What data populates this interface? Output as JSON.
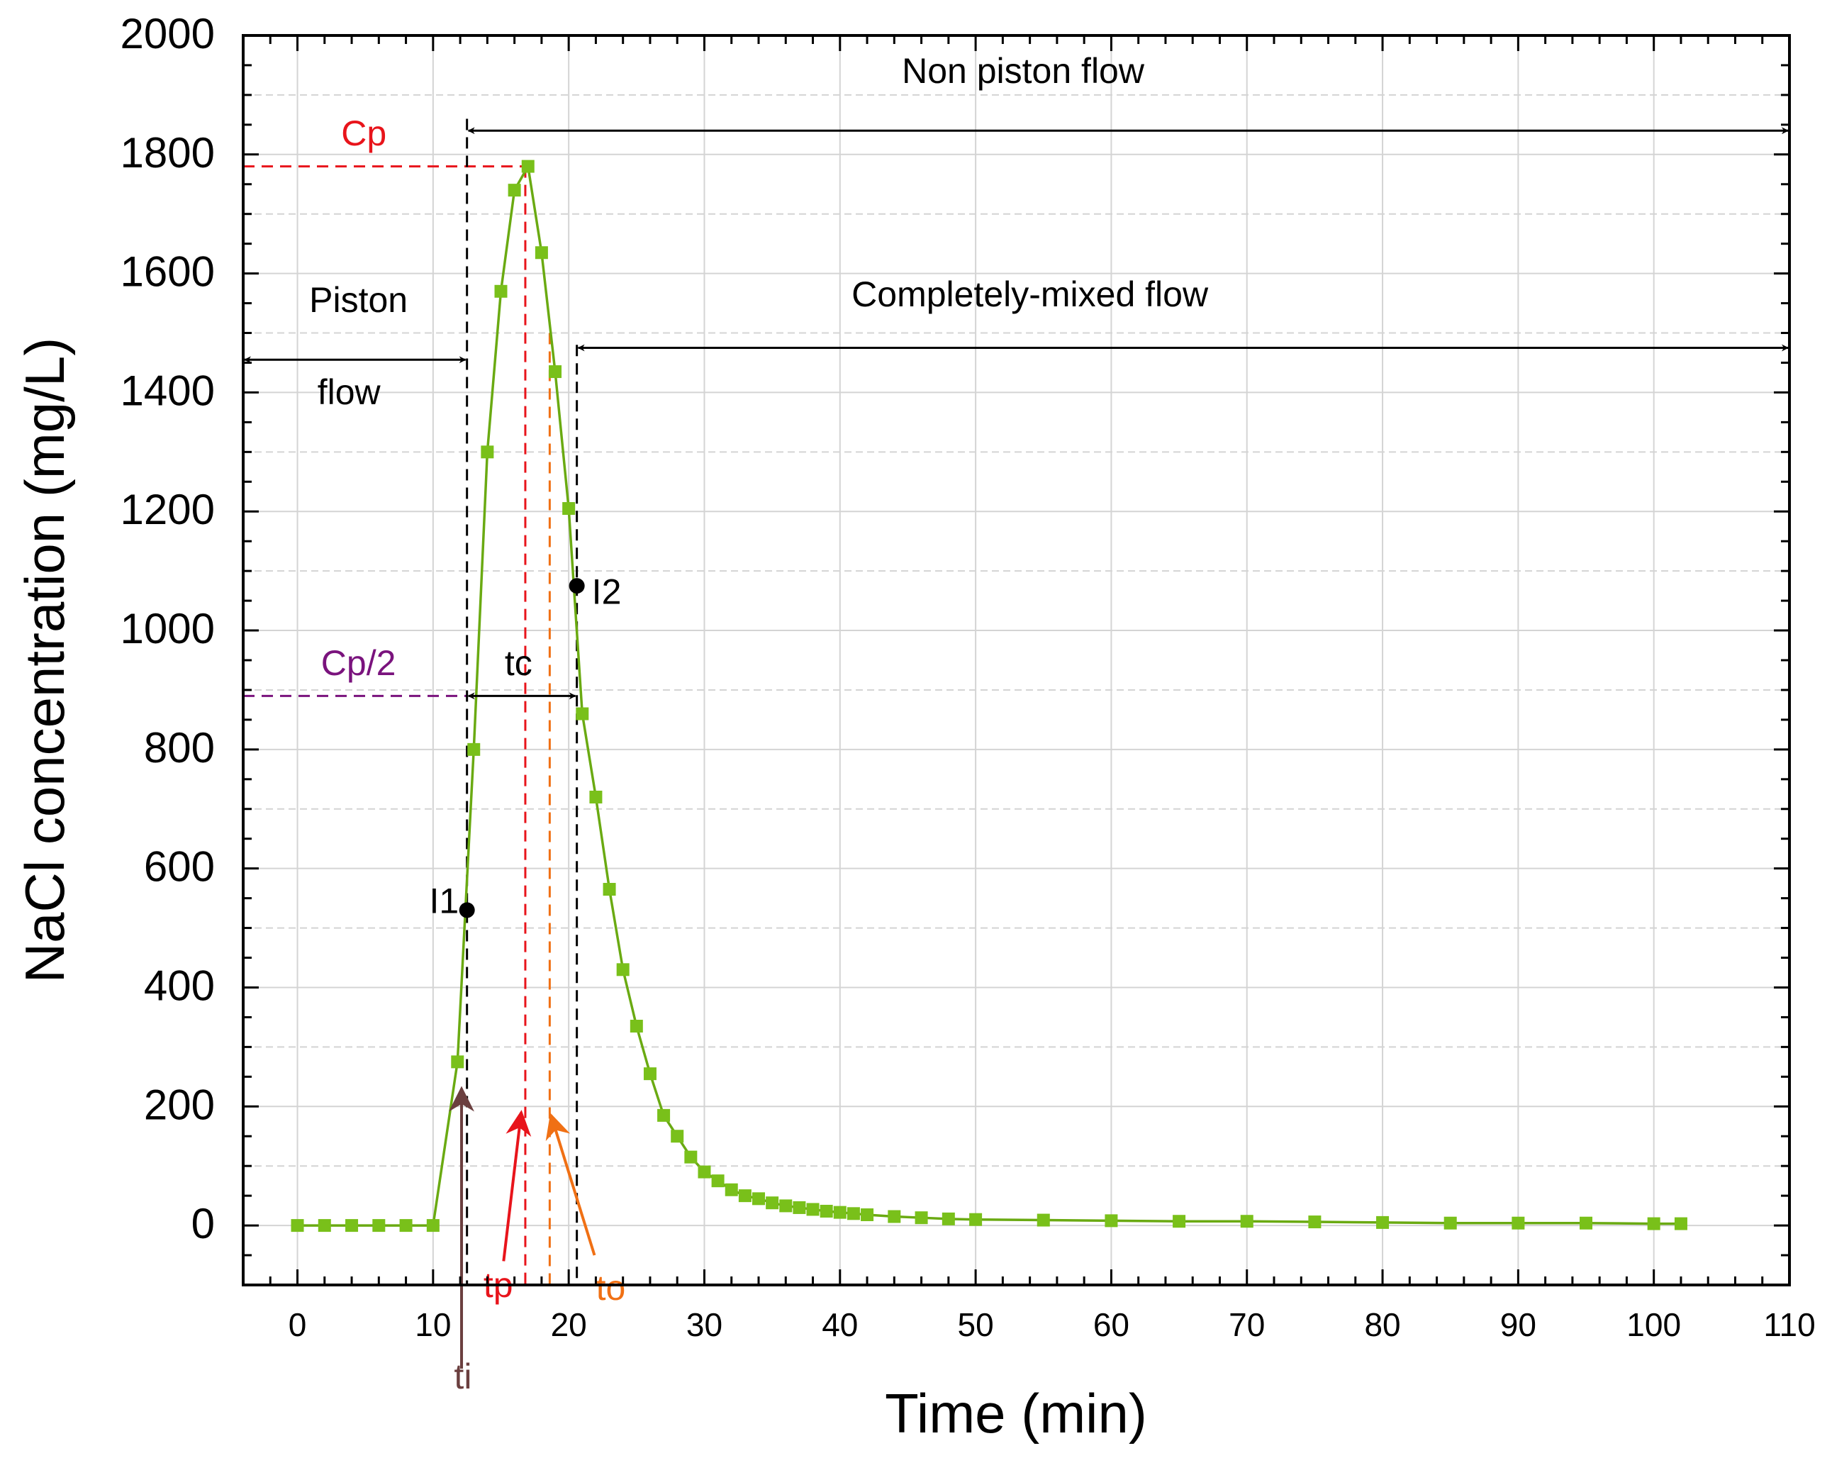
{
  "chart_data": {
    "type": "line",
    "title": "",
    "xlabel": "Time (min)",
    "ylabel": "NaCl concentration (mg/L)",
    "xlim": [
      -4,
      110
    ],
    "ylim": [
      -100,
      2000
    ],
    "xticks": [
      0,
      10,
      20,
      30,
      40,
      50,
      60,
      70,
      80,
      90,
      100,
      110
    ],
    "yticks": [
      0,
      200,
      400,
      600,
      800,
      1000,
      1200,
      1400,
      1600,
      1800,
      2000
    ],
    "grid": true,
    "colors": {
      "series": "#6aaa12",
      "marker": "#79c01a",
      "cp": "#e8141b",
      "cp_half": "#7a137d",
      "to": "#f07014",
      "ti": "#6b3f3f",
      "black": "#000000",
      "grid": "#d4d4d4"
    },
    "series": [
      {
        "name": "NaCl concentration",
        "x": [
          0,
          2,
          4,
          6,
          8,
          10,
          11.8,
          13,
          14,
          15,
          16,
          17,
          18,
          19,
          20,
          21,
          22,
          23,
          24,
          25,
          26,
          27,
          28,
          29,
          30,
          31,
          32,
          33,
          34,
          35,
          36,
          37,
          38,
          39,
          40,
          41,
          42,
          44,
          46,
          48,
          50,
          55,
          60,
          65,
          70,
          75,
          80,
          85,
          90,
          95,
          100,
          102
        ],
        "y": [
          0,
          0,
          0,
          0,
          0,
          0,
          275,
          800,
          1300,
          1570,
          1740,
          1780,
          1635,
          1435,
          1205,
          860,
          720,
          565,
          430,
          335,
          255,
          185,
          150,
          115,
          90,
          75,
          60,
          50,
          45,
          38,
          33,
          30,
          27,
          24,
          22,
          20,
          18,
          15,
          13,
          11,
          10,
          9,
          8,
          7,
          7,
          6,
          5,
          4,
          4,
          4,
          3,
          3
        ]
      }
    ],
    "annotations": {
      "non_piston_flow": "Non piston flow",
      "completely_mixed_flow": "Completely-mixed flow",
      "piston": "Piston",
      "flow": "flow",
      "cp": "Cp",
      "cp_half": "Cp/2",
      "tc": "tc",
      "i1": "I1",
      "i2": "I2",
      "ti": "ti",
      "tp": "tp",
      "to": "to"
    },
    "markers": {
      "cp_value": 1780,
      "cp_half_value": 890,
      "ti_time": 12.5,
      "tp_time": 16.8,
      "to_time": 18.6,
      "t2_time": 20.6,
      "i1": [
        12.5,
        530
      ],
      "i2": [
        20.6,
        1075
      ]
    }
  }
}
